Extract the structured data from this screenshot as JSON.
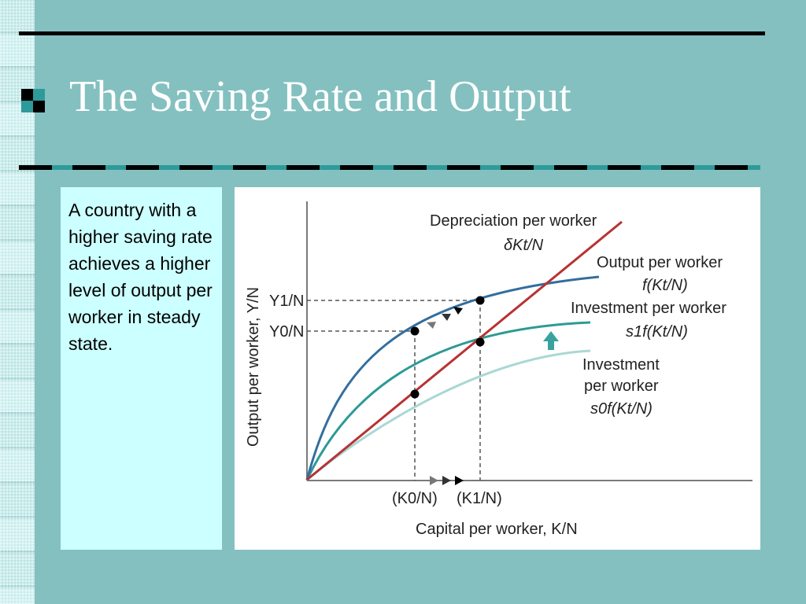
{
  "slide": {
    "title": "The Saving Rate and Output",
    "body_text": "A country with a higher saving rate achieves a higher level of output per worker in steady state.",
    "colors": {
      "background": "#84c0c0",
      "text_panel": "#ccffff",
      "title_text": "#ffffff",
      "bullet_dark": "#000000",
      "bullet_accent": "#2f9a9a"
    }
  },
  "diagram": {
    "y_axis_label": "Output per worker, Y/N",
    "x_axis_label": "Capital per worker, K/N",
    "y_ticks": [
      "Y1/N",
      "Y0/N"
    ],
    "x_ticks": [
      "(K0/N)",
      "(K1/N)"
    ],
    "curves": {
      "depreciation": {
        "title": "Depreciation per worker",
        "formula": "δKt/N",
        "color": "#b83232"
      },
      "output": {
        "title": "Output per worker",
        "formula": "f(Kt/N)",
        "color": "#336e9e"
      },
      "investment_high": {
        "title": "Investment per worker",
        "formula": "s1f(Kt/N)",
        "color": "#2d9a96"
      },
      "investment_low": {
        "title_line1": "Investment",
        "title_line2": "per worker",
        "formula": "s0f(Kt/N)",
        "color": "#a9d8d4"
      }
    },
    "arrow_color": "#3aa29e"
  }
}
